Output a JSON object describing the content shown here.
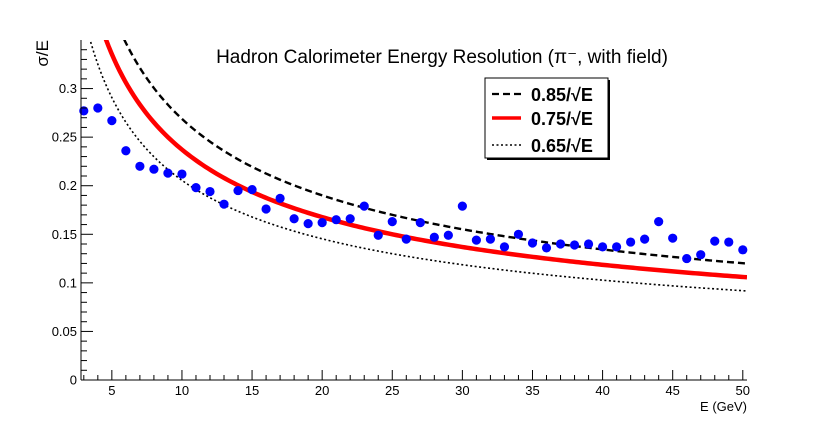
{
  "chart_data": {
    "type": "scatter",
    "title": "Hadron Calorimeter Energy Resolution (π⁻, with field)",
    "xlabel": "E (GeV)",
    "ylabel": "σ/E",
    "xlim": [
      2.8,
      50.3
    ],
    "ylim": [
      0,
      0.35
    ],
    "x_major_ticks": [
      5,
      10,
      15,
      20,
      25,
      30,
      35,
      40,
      45,
      50
    ],
    "y_major_ticks": [
      0,
      0.05,
      0.1,
      0.15,
      0.2,
      0.25,
      0.3
    ],
    "x_tick_labels": [
      "5",
      "10",
      "15",
      "20",
      "25",
      "30",
      "35",
      "40",
      "45",
      "50"
    ],
    "y_tick_labels": [
      "0",
      "0.05",
      "0.1",
      "0.15",
      "0.2",
      "0.25",
      "0.3"
    ],
    "grid": false,
    "legend_position": "top-right",
    "curves": [
      {
        "name": "0.85/√E",
        "coefficient": 0.85,
        "style": "dashed",
        "color": "#000000"
      },
      {
        "name": "0.75/√E",
        "coefficient": 0.75,
        "style": "solid",
        "color": "#ff0000"
      },
      {
        "name": "0.65/√E",
        "coefficient": 0.65,
        "style": "dotted",
        "color": "#000000"
      }
    ],
    "series": [
      {
        "name": "data",
        "color": "#0000ff",
        "points": [
          [
            3,
            0.277
          ],
          [
            4,
            0.28
          ],
          [
            5,
            0.267
          ],
          [
            6,
            0.236
          ],
          [
            7,
            0.22
          ],
          [
            8,
            0.217
          ],
          [
            9,
            0.213
          ],
          [
            10,
            0.212
          ],
          [
            11,
            0.198
          ],
          [
            12,
            0.194
          ],
          [
            13,
            0.181
          ],
          [
            14,
            0.195
          ],
          [
            15,
            0.196
          ],
          [
            16,
            0.176
          ],
          [
            17,
            0.187
          ],
          [
            18,
            0.166
          ],
          [
            19,
            0.161
          ],
          [
            20,
            0.162
          ],
          [
            21,
            0.165
          ],
          [
            22,
            0.166
          ],
          [
            23,
            0.179
          ],
          [
            24,
            0.149
          ],
          [
            25,
            0.163
          ],
          [
            26,
            0.145
          ],
          [
            27,
            0.162
          ],
          [
            28,
            0.147
          ],
          [
            29,
            0.149
          ],
          [
            30,
            0.179
          ],
          [
            31,
            0.144
          ],
          [
            32,
            0.145
          ],
          [
            33,
            0.137
          ],
          [
            34,
            0.15
          ],
          [
            35,
            0.141
          ],
          [
            36,
            0.136
          ],
          [
            37,
            0.14
          ],
          [
            38,
            0.139
          ],
          [
            39,
            0.14
          ],
          [
            40,
            0.137
          ],
          [
            41,
            0.137
          ],
          [
            42,
            0.142
          ],
          [
            43,
            0.145
          ],
          [
            44,
            0.163
          ],
          [
            45,
            0.146
          ],
          [
            46,
            0.125
          ],
          [
            47,
            0.129
          ],
          [
            48,
            0.143
          ],
          [
            49,
            0.142
          ],
          [
            50,
            0.134
          ]
        ]
      }
    ]
  }
}
